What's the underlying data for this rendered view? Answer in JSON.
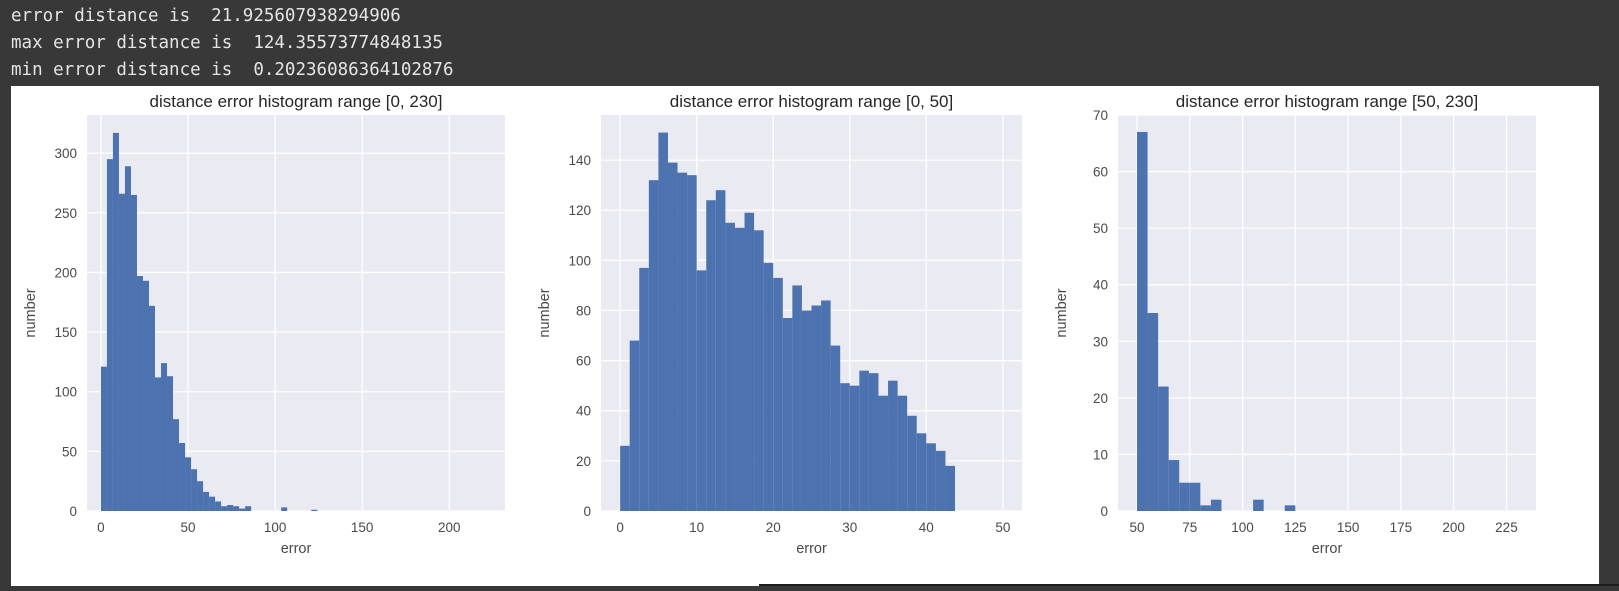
{
  "console": {
    "lines": [
      "error distance is  21.925607938294906",
      "max error distance is  124.35573774848135",
      "min error distance is  0.20236086364102876"
    ]
  },
  "colors": {
    "bar": "#4c72b0",
    "plot_bg": "#eaeaf2",
    "grid": "#ffffff",
    "console_bg": "#383838",
    "console_text": "#e4e4e4"
  },
  "chart_data": [
    {
      "type": "bar",
      "title": "distance error histogram range [0, 230]",
      "xlabel": "error",
      "ylabel": "number",
      "xlim": [
        -8,
        232
      ],
      "ylim": [
        0,
        332
      ],
      "xticks": [
        0,
        50,
        100,
        150,
        200
      ],
      "yticks": [
        0,
        50,
        100,
        150,
        200,
        250,
        300
      ],
      "bin_width": 3.45,
      "x": [
        1.72,
        5.17,
        8.62,
        12.07,
        15.52,
        18.97,
        22.42,
        25.87,
        29.32,
        32.77,
        36.22,
        39.67,
        43.12,
        46.57,
        50.02,
        53.47,
        56.92,
        60.37,
        63.82,
        67.27,
        70.72,
        74.17,
        77.62,
        81.07,
        84.52,
        105.22,
        122.47
      ],
      "values": [
        121,
        295,
        317,
        266,
        289,
        265,
        197,
        193,
        172,
        112,
        124,
        113,
        77,
        57,
        45,
        35,
        25,
        16,
        12,
        8,
        4,
        5,
        4,
        2,
        4,
        3,
        1
      ]
    },
    {
      "type": "bar",
      "title": "distance error histogram range [0, 50]",
      "xlabel": "error",
      "ylabel": "number",
      "xlim": [
        -2.5,
        52.5
      ],
      "ylim": [
        0,
        158
      ],
      "xticks": [
        0,
        10,
        20,
        30,
        40,
        50
      ],
      "yticks": [
        0,
        20,
        40,
        60,
        80,
        100,
        120,
        140
      ],
      "bin_width": 1.25,
      "x": [
        0.625,
        1.875,
        3.125,
        4.375,
        5.625,
        6.875,
        8.125,
        9.375,
        10.625,
        11.875,
        13.125,
        14.375,
        15.625,
        16.875,
        18.125,
        19.375,
        20.625,
        21.875,
        23.125,
        24.375,
        25.625,
        26.875,
        28.125,
        29.375,
        30.625,
        31.875,
        33.125,
        34.375,
        35.625,
        36.875,
        38.125,
        39.375,
        40.625,
        41.875,
        43.125,
        44.375,
        45.625,
        46.875,
        48.125,
        49.375
      ],
      "values": [
        26,
        68,
        97,
        132,
        151,
        139,
        135,
        134,
        96,
        124,
        128,
        115,
        113,
        119,
        112,
        99,
        93,
        77,
        90,
        80,
        82,
        84,
        66,
        51,
        50,
        56,
        55,
        46,
        52,
        46,
        38,
        31,
        27,
        24,
        18,
        0,
        0,
        0,
        0,
        0
      ]
    },
    {
      "type": "bar",
      "title": "distance error histogram range [50, 230]",
      "xlabel": "error",
      "ylabel": "number",
      "xlim": [
        41,
        239
      ],
      "ylim": [
        0,
        70
      ],
      "xticks": [
        50,
        75,
        100,
        125,
        150,
        175,
        200,
        225
      ],
      "yticks": [
        0,
        10,
        20,
        30,
        40,
        50,
        60,
        70
      ],
      "bin_width": 5,
      "x": [
        52.5,
        57.5,
        62.5,
        67.5,
        72.5,
        77.5,
        82.5,
        87.5,
        107.5,
        122.5
      ],
      "values": [
        67,
        35,
        22,
        9,
        5,
        5,
        1,
        2,
        2,
        1
      ]
    }
  ]
}
